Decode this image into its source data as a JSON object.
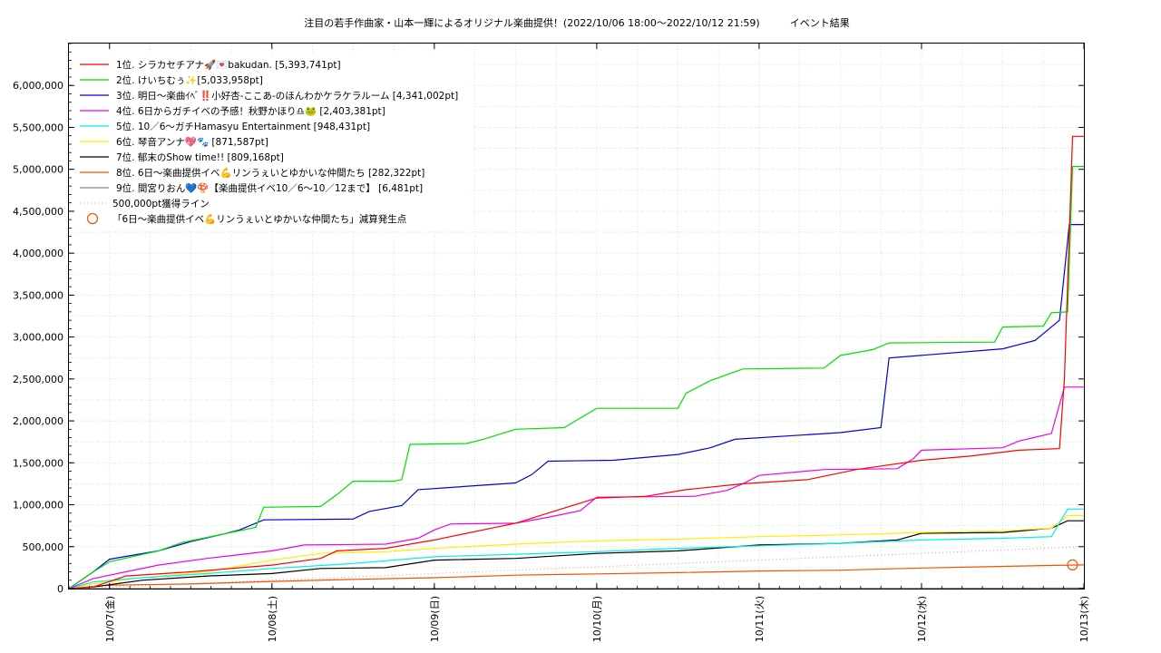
{
  "chart_data": {
    "type": "line",
    "title": "注目の若手作曲家・山本一輝によるオリジナル楽曲提供！(2022/10/06 18:00～2022/10/12 21:59)　　　イベント結果",
    "xlabel": "",
    "ylabel": "",
    "x_tick_labels": [
      "10/07(金)",
      "10/08(土)",
      "10/09(日)",
      "10/10(月)",
      "10/11(火)",
      "10/12(水)",
      "10/13(木)"
    ],
    "ylim": [
      0,
      6500000
    ],
    "y_tick_values": [
      0,
      500000,
      1000000,
      1500000,
      2000000,
      2500000,
      3000000,
      3500000,
      4000000,
      4500000,
      5000000,
      5500000,
      6000000
    ],
    "y_tick_labels": [
      "0",
      "500,000",
      "1,000,000",
      "1,500,000",
      "2,000,000",
      "2,500,000",
      "3,000,000",
      "3,500,000",
      "4,000,000",
      "4,500,000",
      "5,000,000",
      "5,500,000",
      "6,000,000"
    ],
    "x_range_days": [
      -0.25,
      6.0
    ],
    "grid": true,
    "legend_position": "top-left",
    "series": [
      {
        "name": "1位. シラカセチアナ🚀💌bakudan. [5,393,741pt]",
        "color": "#ff0000",
        "points": [
          [
            -0.25,
            0
          ],
          [
            -0.1,
            20000
          ],
          [
            0.1,
            150000
          ],
          [
            0.5,
            200000
          ],
          [
            1.0,
            280000
          ],
          [
            1.3,
            360000
          ],
          [
            1.4,
            450000
          ],
          [
            1.7,
            480000
          ],
          [
            2.0,
            580000
          ],
          [
            2.35,
            720000
          ],
          [
            2.5,
            780000
          ],
          [
            3.0,
            1080000
          ],
          [
            3.3,
            1100000
          ],
          [
            3.55,
            1180000
          ],
          [
            3.9,
            1250000
          ],
          [
            4.3,
            1300000
          ],
          [
            4.6,
            1420000
          ],
          [
            5.0,
            1530000
          ],
          [
            5.3,
            1580000
          ],
          [
            5.6,
            1650000
          ],
          [
            5.85,
            1670000
          ],
          [
            5.88,
            2500000
          ],
          [
            5.93,
            5393741
          ],
          [
            6.0,
            5393741
          ]
        ]
      },
      {
        "name": "2位. けいちむぅ✨[5,033,958pt]",
        "color": "#00e000",
        "points": [
          [
            -0.25,
            0
          ],
          [
            -0.1,
            200000
          ],
          [
            0.0,
            320000
          ],
          [
            0.3,
            450000
          ],
          [
            0.45,
            550000
          ],
          [
            0.7,
            650000
          ],
          [
            0.9,
            730000
          ],
          [
            0.95,
            970000
          ],
          [
            1.3,
            980000
          ],
          [
            1.4,
            1120000
          ],
          [
            1.5,
            1280000
          ],
          [
            1.75,
            1280000
          ],
          [
            1.8,
            1300000
          ],
          [
            1.85,
            1720000
          ],
          [
            2.2,
            1730000
          ],
          [
            2.3,
            1780000
          ],
          [
            2.5,
            1900000
          ],
          [
            2.8,
            1920000
          ],
          [
            3.0,
            2150000
          ],
          [
            3.5,
            2150000
          ],
          [
            3.55,
            2330000
          ],
          [
            3.7,
            2480000
          ],
          [
            3.9,
            2620000
          ],
          [
            4.4,
            2630000
          ],
          [
            4.5,
            2780000
          ],
          [
            4.7,
            2850000
          ],
          [
            4.8,
            2930000
          ],
          [
            5.45,
            2940000
          ],
          [
            5.5,
            3120000
          ],
          [
            5.75,
            3130000
          ],
          [
            5.8,
            3290000
          ],
          [
            5.9,
            3300000
          ],
          [
            5.93,
            5033958
          ],
          [
            6.0,
            5033958
          ]
        ]
      },
      {
        "name": "3位. 明日〜楽曲ｲﾍﾞ‼️小好杏-ここあ-のほんわかケラケラルーム [4,341,002pt]",
        "color": "#0000dd",
        "points": [
          [
            -0.25,
            0
          ],
          [
            -0.1,
            200000
          ],
          [
            0.0,
            350000
          ],
          [
            0.3,
            450000
          ],
          [
            0.5,
            560000
          ],
          [
            0.7,
            650000
          ],
          [
            0.8,
            700000
          ],
          [
            0.95,
            820000
          ],
          [
            1.5,
            830000
          ],
          [
            1.6,
            920000
          ],
          [
            1.8,
            990000
          ],
          [
            1.9,
            1180000
          ],
          [
            2.5,
            1260000
          ],
          [
            2.6,
            1360000
          ],
          [
            2.7,
            1520000
          ],
          [
            3.1,
            1530000
          ],
          [
            3.5,
            1600000
          ],
          [
            3.7,
            1680000
          ],
          [
            3.85,
            1780000
          ],
          [
            4.5,
            1860000
          ],
          [
            4.75,
            1920000
          ],
          [
            4.8,
            2750000
          ],
          [
            5.5,
            2860000
          ],
          [
            5.7,
            2960000
          ],
          [
            5.85,
            3200000
          ],
          [
            5.91,
            4341002
          ],
          [
            6.0,
            4341002
          ]
        ]
      },
      {
        "name": "4位. 6日からガチイベの予感！秋野かほり♎🐸 [2,403,381pt]",
        "color": "#ee00ee",
        "points": [
          [
            -0.25,
            0
          ],
          [
            -0.1,
            120000
          ],
          [
            0.3,
            280000
          ],
          [
            0.6,
            360000
          ],
          [
            1.0,
            450000
          ],
          [
            1.2,
            520000
          ],
          [
            1.7,
            530000
          ],
          [
            1.9,
            600000
          ],
          [
            2.0,
            700000
          ],
          [
            2.1,
            770000
          ],
          [
            2.5,
            780000
          ],
          [
            2.7,
            850000
          ],
          [
            2.9,
            930000
          ],
          [
            3.0,
            1090000
          ],
          [
            3.6,
            1100000
          ],
          [
            3.8,
            1170000
          ],
          [
            3.9,
            1250000
          ],
          [
            4.0,
            1350000
          ],
          [
            4.4,
            1420000
          ],
          [
            4.85,
            1430000
          ],
          [
            4.95,
            1550000
          ],
          [
            5.0,
            1650000
          ],
          [
            5.5,
            1680000
          ],
          [
            5.6,
            1760000
          ],
          [
            5.8,
            1850000
          ],
          [
            5.88,
            2403381
          ],
          [
            6.0,
            2403381
          ]
        ]
      },
      {
        "name": "5位. 10／6〜ガチHamasyu Entertainment [948,431pt]",
        "color": "#00eeee",
        "points": [
          [
            -0.25,
            0
          ],
          [
            -0.1,
            80000
          ],
          [
            0.2,
            130000
          ],
          [
            0.6,
            180000
          ],
          [
            1.0,
            240000
          ],
          [
            1.5,
            300000
          ],
          [
            2.0,
            380000
          ],
          [
            2.5,
            410000
          ],
          [
            3.0,
            440000
          ],
          [
            3.5,
            480000
          ],
          [
            4.0,
            510000
          ],
          [
            4.5,
            540000
          ],
          [
            5.0,
            580000
          ],
          [
            5.5,
            600000
          ],
          [
            5.8,
            620000
          ],
          [
            5.9,
            948431
          ],
          [
            6.0,
            948431
          ]
        ]
      },
      {
        "name": "6位. 琴音アンナ💖🐾 [871,587pt]",
        "color": "#ffee00",
        "points": [
          [
            -0.25,
            0
          ],
          [
            -0.1,
            60000
          ],
          [
            0.2,
            130000
          ],
          [
            0.6,
            200000
          ],
          [
            1.0,
            340000
          ],
          [
            1.3,
            420000
          ],
          [
            1.7,
            440000
          ],
          [
            2.0,
            480000
          ],
          [
            2.5,
            530000
          ],
          [
            3.0,
            570000
          ],
          [
            3.5,
            590000
          ],
          [
            4.0,
            620000
          ],
          [
            4.5,
            640000
          ],
          [
            5.0,
            670000
          ],
          [
            5.5,
            690000
          ],
          [
            5.8,
            720000
          ],
          [
            5.9,
            871587
          ],
          [
            6.0,
            871587
          ]
        ]
      },
      {
        "name": "7位. 郁末のShow time!! [809,168pt]",
        "color": "#000000",
        "points": [
          [
            -0.25,
            0
          ],
          [
            -0.1,
            20000
          ],
          [
            0.2,
            100000
          ],
          [
            0.6,
            150000
          ],
          [
            1.0,
            180000
          ],
          [
            1.3,
            240000
          ],
          [
            1.7,
            250000
          ],
          [
            2.0,
            340000
          ],
          [
            2.5,
            360000
          ],
          [
            3.0,
            420000
          ],
          [
            3.5,
            450000
          ],
          [
            4.0,
            520000
          ],
          [
            4.5,
            540000
          ],
          [
            4.85,
            580000
          ],
          [
            5.0,
            660000
          ],
          [
            5.5,
            670000
          ],
          [
            5.8,
            720000
          ],
          [
            5.9,
            809168
          ],
          [
            6.0,
            809168
          ]
        ]
      },
      {
        "name": "8位. 6日〜楽曲提供イベ💪リンうぇいとゆかいな仲間たち [282,322pt]",
        "color": "#ee5500",
        "points": [
          [
            -0.25,
            0
          ],
          [
            0.0,
            40000
          ],
          [
            0.5,
            55000
          ],
          [
            1.0,
            85000
          ],
          [
            1.5,
            110000
          ],
          [
            2.0,
            130000
          ],
          [
            2.5,
            160000
          ],
          [
            3.0,
            175000
          ],
          [
            3.5,
            190000
          ],
          [
            4.0,
            210000
          ],
          [
            4.5,
            220000
          ],
          [
            5.0,
            245000
          ],
          [
            5.5,
            265000
          ],
          [
            5.9,
            280000
          ],
          [
            6.0,
            282322
          ]
        ]
      },
      {
        "name": "9位. 間宮りおん💙🍄【楽曲提供イベ10／6〜10／12まで】 [6,481pt]",
        "color": "#888888",
        "points": [
          [
            -0.25,
            0
          ],
          [
            5.0,
            3000
          ],
          [
            5.9,
            6481
          ],
          [
            6.0,
            6481
          ]
        ]
      }
    ],
    "reference_lines": [
      {
        "name": "500,000pt獲得ライン",
        "color": "#ff8888",
        "points": [
          [
            -0.25,
            0
          ],
          [
            6.0,
            500000
          ]
        ]
      }
    ],
    "markers": [
      {
        "name": "「6日〜楽曲提供イベ💪リンうぇいとゆかいな仲間たち」減算発生点",
        "color": "#ee5500",
        "points": [
          [
            5.93,
            282322
          ]
        ]
      }
    ]
  }
}
